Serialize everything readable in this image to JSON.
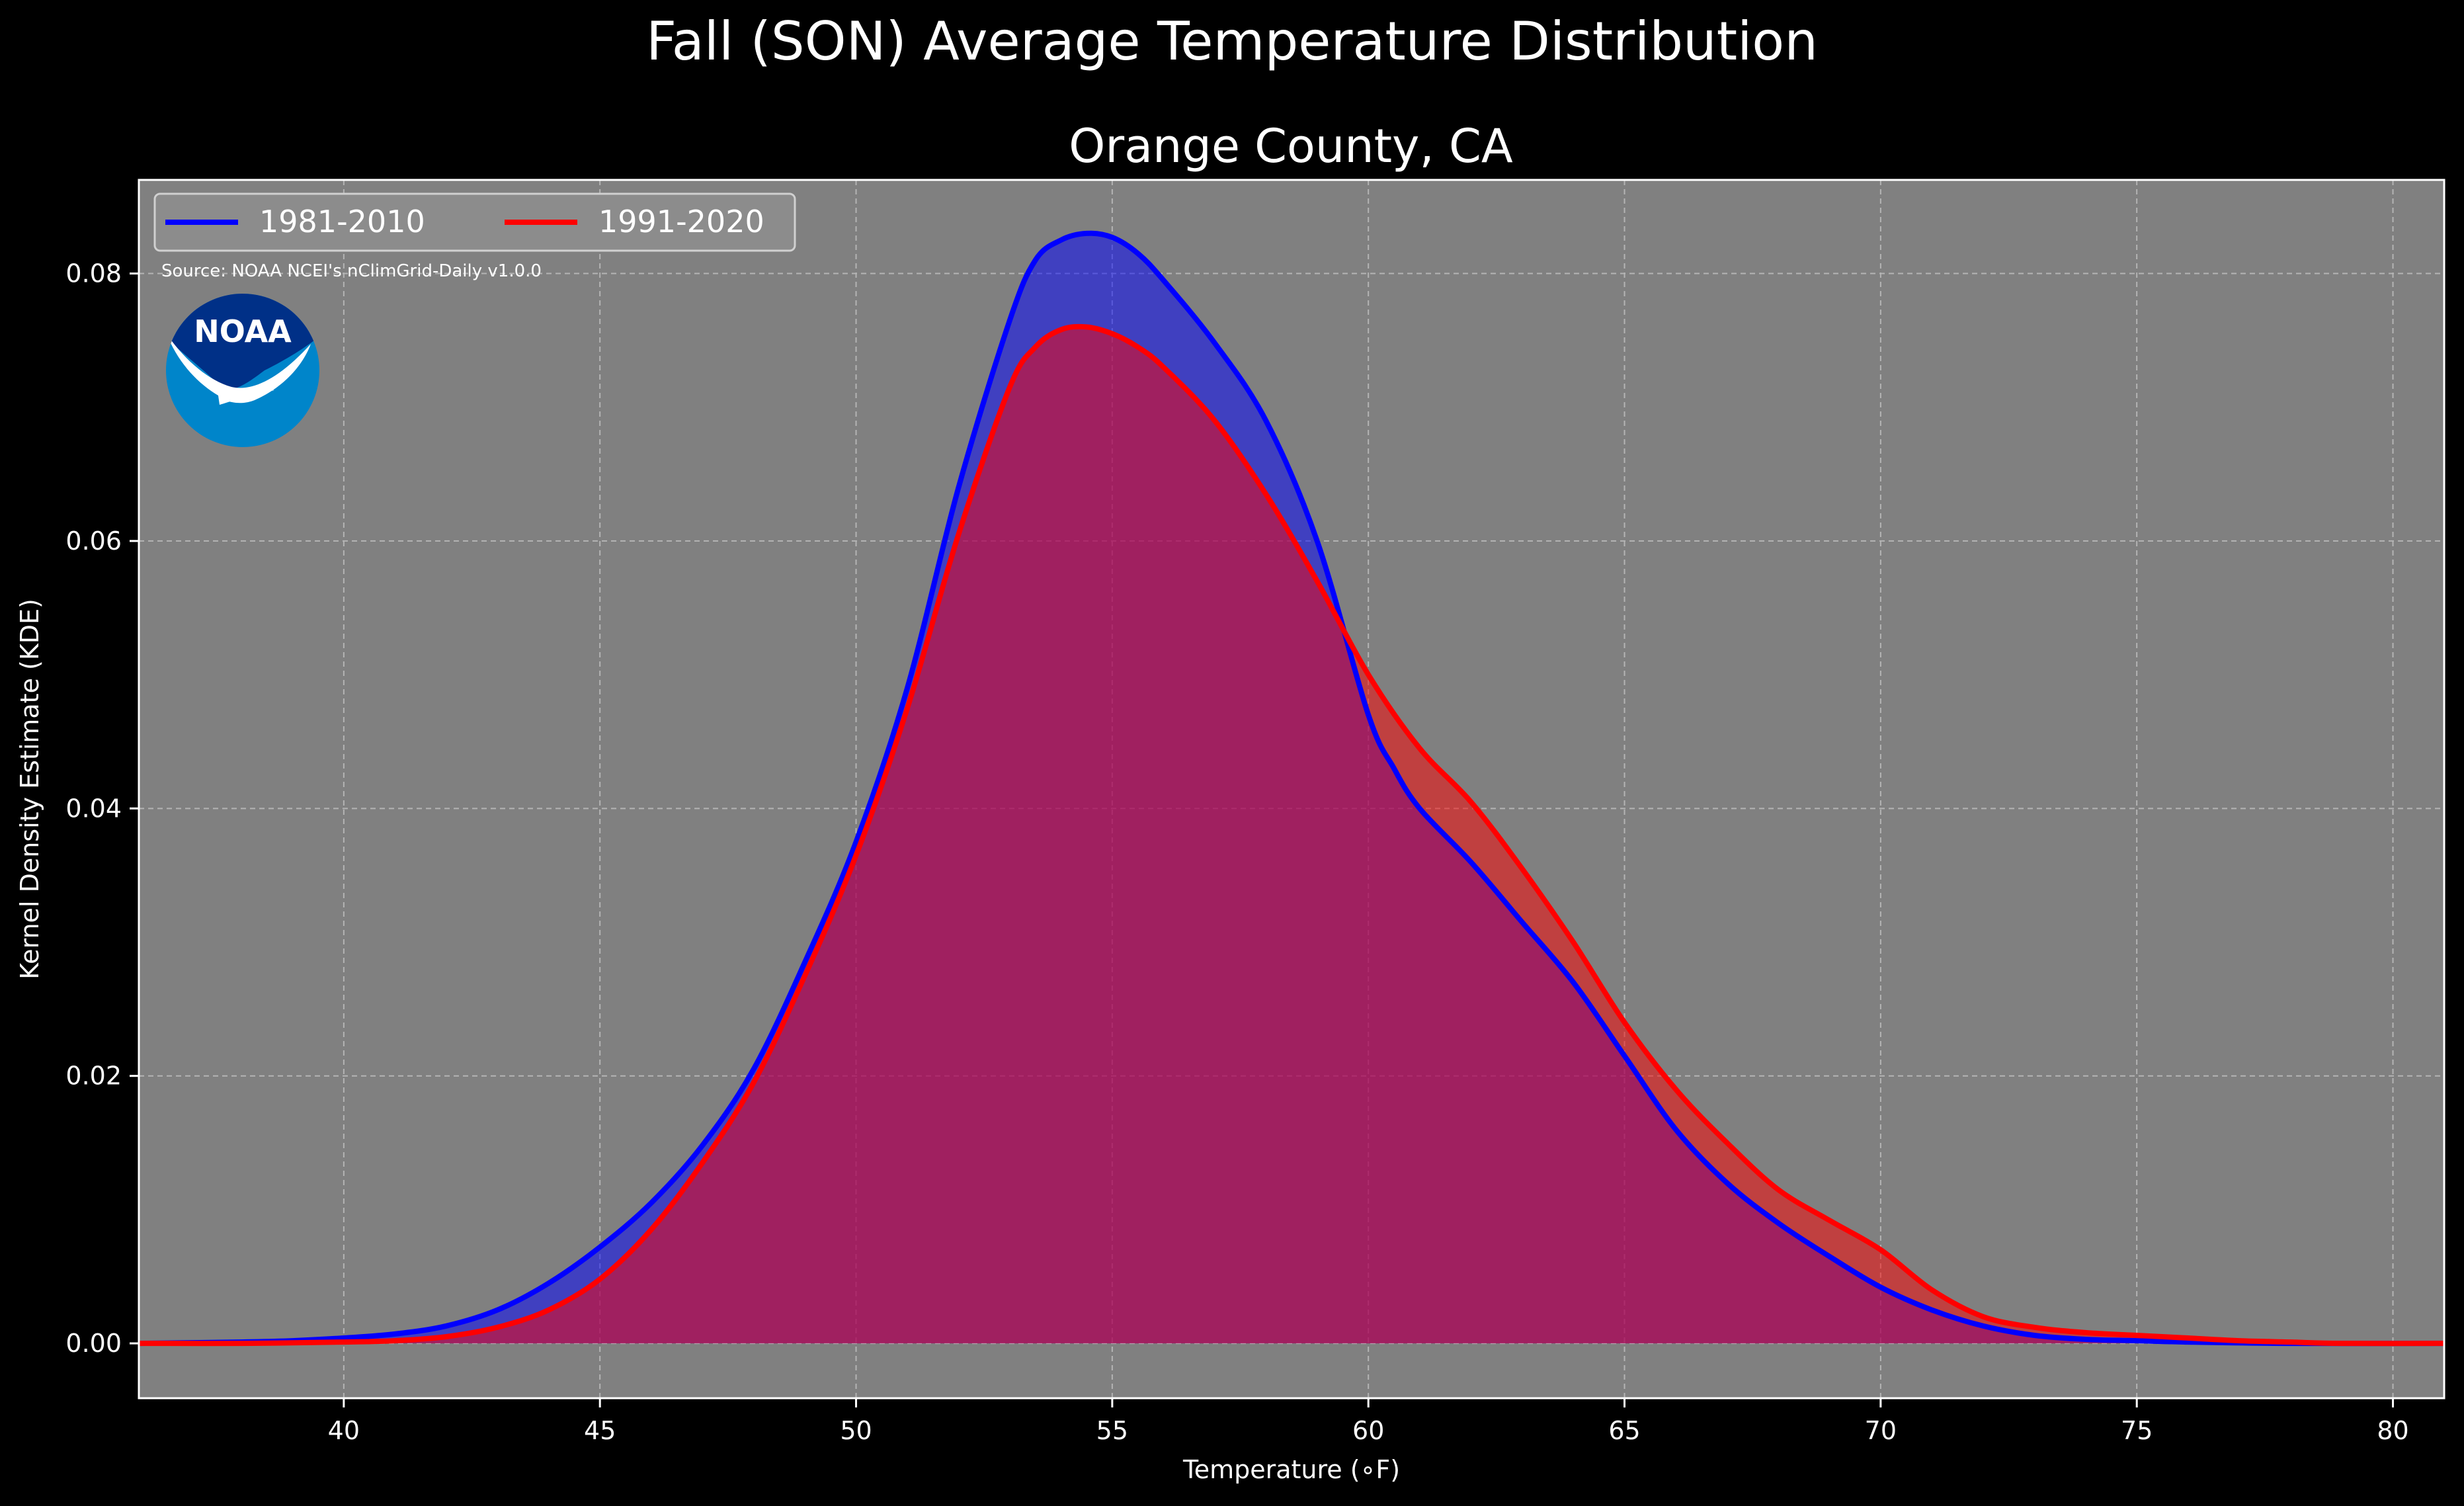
{
  "chart_data": {
    "type": "area",
    "title": "Fall (SON) Average Temperature Distribution",
    "subtitle": "Orange County, CA",
    "xlabel": "Temperature ($^\\circ$F)",
    "xlabel_display": "Temperature (∘F)",
    "ylabel": "Kernel Density Estimate (KDE)",
    "xlim": [
      36,
      81
    ],
    "ylim": [
      -0.0041,
      0.087
    ],
    "xticks": [
      40,
      45,
      50,
      55,
      60,
      65,
      70,
      75,
      80
    ],
    "yticks": [
      0.0,
      0.02,
      0.04,
      0.06,
      0.08
    ],
    "ytick_labels": [
      "0.00",
      "0.02",
      "0.04",
      "0.06",
      "0.08"
    ],
    "grid": true,
    "legend_position": "top-left",
    "background": "#808080",
    "annotation": "Source: NOAA NCEI's nClimGrid-Daily v1.0.0",
    "logo_text": "NOAA",
    "series": [
      {
        "name": "1981-2010",
        "color": "#0000ff",
        "fill": "#0000ff",
        "x": [
          36,
          38,
          39,
          40,
          41,
          42,
          43,
          44,
          45,
          46,
          47,
          48,
          49,
          50,
          51,
          52,
          53,
          53.5,
          54,
          54.5,
          55,
          55.5,
          56,
          57,
          58,
          59,
          60,
          60.5,
          61,
          62,
          63,
          64,
          65,
          66,
          67,
          68,
          69,
          70,
          71,
          72,
          73,
          74,
          75,
          76,
          78,
          81
        ],
        "y": [
          0,
          0.0001,
          0.0002,
          0.0004,
          0.0007,
          0.0013,
          0.0025,
          0.0045,
          0.0072,
          0.0105,
          0.0148,
          0.0205,
          0.0285,
          0.0375,
          0.049,
          0.064,
          0.0765,
          0.081,
          0.0825,
          0.083,
          0.0827,
          0.0815,
          0.0795,
          0.0748,
          0.069,
          0.06,
          0.047,
          0.043,
          0.04,
          0.036,
          0.0315,
          0.027,
          0.0215,
          0.016,
          0.012,
          0.009,
          0.0065,
          0.0042,
          0.0025,
          0.0013,
          0.0006,
          0.0003,
          0.0002,
          0.0001,
          0,
          0
        ]
      },
      {
        "name": "1991-2020",
        "color": "#ff0000",
        "fill": "#ff0000",
        "x": [
          36,
          38,
          40,
          41,
          42,
          43,
          44,
          45,
          46,
          47,
          48,
          49,
          50,
          51,
          52,
          53,
          53.5,
          54,
          54.5,
          55,
          55.5,
          56,
          57,
          58,
          59,
          60,
          61,
          62,
          63,
          64,
          65,
          66,
          67,
          68,
          69,
          70,
          71,
          72,
          73,
          74,
          75,
          76,
          77,
          78,
          79,
          81
        ],
        "y": [
          0,
          0,
          0.0001,
          0.0002,
          0.0005,
          0.0012,
          0.0025,
          0.0048,
          0.0085,
          0.0135,
          0.0195,
          0.0275,
          0.0365,
          0.0475,
          0.0605,
          0.0715,
          0.0745,
          0.0758,
          0.076,
          0.0755,
          0.0745,
          0.073,
          0.069,
          0.0635,
          0.057,
          0.05,
          0.0445,
          0.0405,
          0.0355,
          0.03,
          0.024,
          0.019,
          0.015,
          0.0115,
          0.0092,
          0.007,
          0.004,
          0.002,
          0.0012,
          0.0008,
          0.0006,
          0.0004,
          0.0002,
          0.0001,
          0,
          0
        ]
      }
    ]
  }
}
